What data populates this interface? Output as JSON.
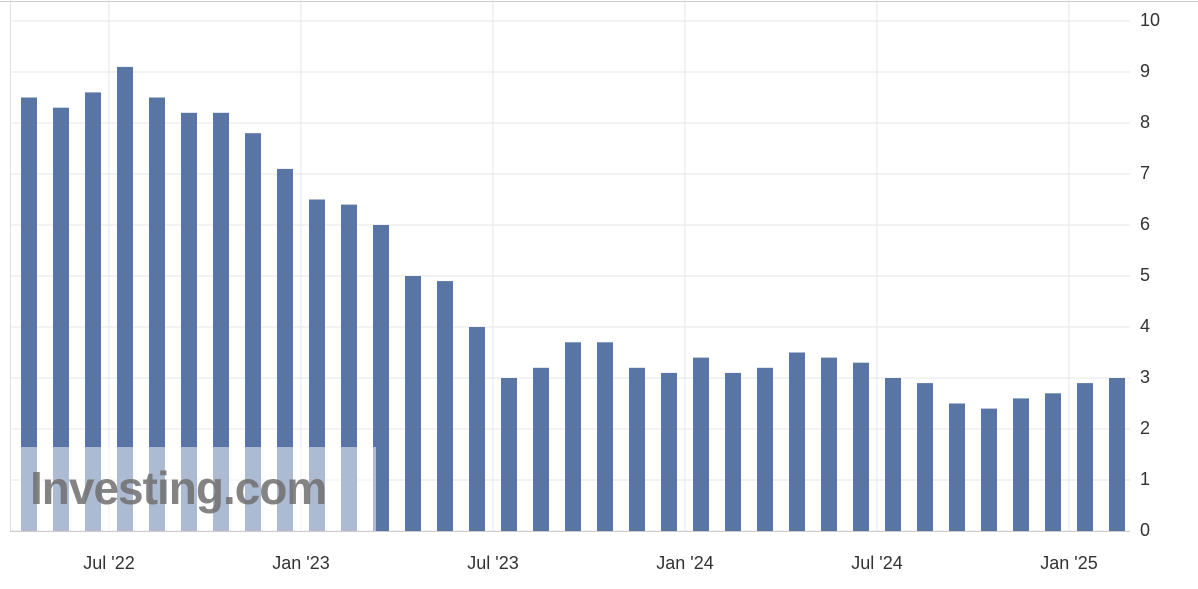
{
  "chart_data": {
    "type": "bar",
    "categories": [
      null,
      null,
      null,
      "Jul '22",
      null,
      null,
      null,
      null,
      null,
      "Jan '23",
      null,
      null,
      null,
      null,
      null,
      "Jul '23",
      null,
      null,
      null,
      null,
      null,
      "Jan '24",
      null,
      null,
      null,
      null,
      null,
      "Jul '24",
      null,
      null,
      null,
      null,
      null,
      "Jan '25",
      null
    ],
    "values": [
      8.5,
      8.3,
      8.6,
      9.1,
      8.5,
      8.2,
      8.2,
      7.8,
      7.1,
      6.5,
      6.4,
      6.0,
      5.0,
      4.9,
      4.0,
      3.0,
      3.2,
      3.7,
      3.7,
      3.2,
      3.1,
      3.4,
      3.1,
      3.2,
      3.5,
      3.4,
      3.3,
      3.0,
      2.9,
      2.5,
      2.4,
      2.6,
      2.7,
      2.9,
      3.0
    ],
    "color": "#5875a4",
    "ylim": [
      0,
      10
    ],
    "yticks": [
      0,
      1,
      2,
      3,
      4,
      5,
      6,
      7,
      8,
      9,
      10
    ],
    "grid": true,
    "watermark": "Investing.com"
  }
}
